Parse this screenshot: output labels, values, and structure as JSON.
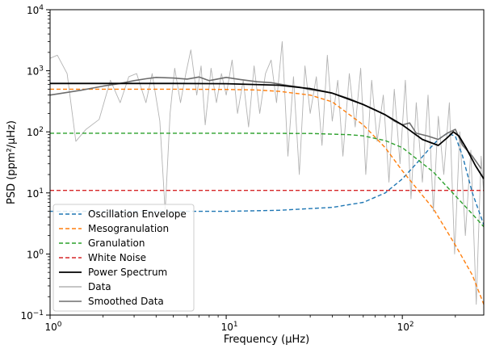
{
  "chart_data": {
    "type": "line",
    "xlabel": "Frequency (μHz)",
    "ylabel": "PSD (ppm²/μHz)",
    "xscale": "log",
    "yscale": "log",
    "xlim": [
      1,
      290
    ],
    "ylim": [
      0.1,
      10000
    ],
    "x_ticks": [
      {
        "value": 1,
        "base": "10",
        "exp": "0"
      },
      {
        "value": 10,
        "base": "10",
        "exp": "1"
      },
      {
        "value": 100,
        "base": "10",
        "exp": "2"
      }
    ],
    "y_ticks": [
      {
        "value": 0.1,
        "base": "10",
        "exp": "−1"
      },
      {
        "value": 1,
        "base": "10",
        "exp": "0"
      },
      {
        "value": 10,
        "base": "10",
        "exp": "1"
      },
      {
        "value": 100,
        "base": "10",
        "exp": "2"
      },
      {
        "value": 1000,
        "base": "10",
        "exp": "3"
      },
      {
        "value": 10000,
        "base": "10",
        "exp": "4"
      }
    ],
    "grid": false,
    "legend_position": "bottom-left",
    "legend": [
      {
        "label": "Oscillation Envelope",
        "color": "#1f77b4",
        "style": "dashed"
      },
      {
        "label": "Mesogranulation",
        "color": "#ff7f0e",
        "style": "dashed"
      },
      {
        "label": "Granulation",
        "color": "#2ca02c",
        "style": "dashed"
      },
      {
        "label": "White Noise",
        "color": "#d62728",
        "style": "dashed"
      },
      {
        "label": "Power Spectrum",
        "color": "#000000",
        "style": "solid"
      },
      {
        "label": "Data",
        "color": "#b3b3b3",
        "style": "solid"
      },
      {
        "label": "Smoothed Data",
        "color": "#6e6e6e",
        "style": "solid"
      }
    ],
    "series": [
      {
        "name": "Oscillation Envelope",
        "x": [
          1,
          5,
          10,
          20,
          40,
          60,
          80,
          100,
          120,
          140,
          160,
          180,
          200,
          220,
          250,
          290
        ],
        "y": [
          5,
          5,
          5,
          5.2,
          5.8,
          7,
          10,
          17,
          30,
          50,
          75,
          95,
          85,
          40,
          10,
          3
        ]
      },
      {
        "name": "Mesogranulation",
        "x": [
          1,
          5,
          10,
          15,
          20,
          30,
          40,
          60,
          80,
          100,
          150,
          200,
          250,
          290
        ],
        "y": [
          500,
          500,
          495,
          485,
          460,
          400,
          310,
          130,
          55,
          23,
          5.5,
          1.4,
          0.45,
          0.15
        ]
      },
      {
        "name": "Granulation",
        "x": [
          1,
          10,
          30,
          50,
          60,
          80,
          100,
          150,
          200,
          250,
          290
        ],
        "y": [
          95,
          95,
          94,
          90,
          86,
          72,
          55,
          22,
          9,
          4.5,
          2.8
        ]
      },
      {
        "name": "White Noise",
        "x": [
          1,
          290
        ],
        "y": [
          11,
          11
        ]
      },
      {
        "name": "Power Spectrum",
        "x": [
          1,
          5,
          10,
          20,
          30,
          40,
          60,
          80,
          100,
          130,
          160,
          180,
          195,
          210,
          230,
          260,
          290
        ],
        "y": [
          620,
          620,
          615,
          580,
          510,
          430,
          280,
          190,
          130,
          75,
          60,
          80,
          100,
          85,
          55,
          28,
          17
        ]
      },
      {
        "name": "Data",
        "x": [
          1,
          1.1,
          1.25,
          1.4,
          1.6,
          1.9,
          2.2,
          2.5,
          2.8,
          3.1,
          3.5,
          3.8,
          4.2,
          4.5,
          4.8,
          5.1,
          5.5,
          5.9,
          6.3,
          6.8,
          7.2,
          7.6,
          8.2,
          8.8,
          9.4,
          10,
          10.8,
          11.6,
          12.5,
          13.4,
          14.4,
          15.5,
          16.7,
          18,
          19.3,
          20.8,
          22.4,
          24.1,
          26,
          28,
          30,
          32.5,
          35,
          37.5,
          40,
          43,
          46,
          50,
          54,
          58,
          62,
          67,
          72,
          78,
          84,
          90,
          97,
          104,
          112,
          120,
          130,
          140,
          150,
          160,
          172,
          185,
          198,
          212,
          228,
          245,
          263,
          280,
          290
        ],
        "y": [
          1600,
          1800,
          900,
          70,
          110,
          160,
          700,
          300,
          800,
          900,
          300,
          900,
          150,
          5,
          200,
          1100,
          300,
          900,
          2200,
          400,
          1200,
          130,
          1100,
          300,
          900,
          400,
          1500,
          200,
          700,
          120,
          1200,
          200,
          900,
          1500,
          300,
          3000,
          40,
          800,
          20,
          1200,
          200,
          800,
          60,
          1800,
          150,
          700,
          40,
          900,
          120,
          1100,
          20,
          700,
          70,
          400,
          15,
          500,
          30,
          700,
          8,
          300,
          15,
          400,
          5,
          180,
          20,
          300,
          1,
          100,
          2,
          50,
          0.15,
          40,
          10
        ]
      },
      {
        "name": "Smoothed Data",
        "x": [
          1,
          1.5,
          2,
          2.5,
          3,
          3.5,
          4,
          5,
          6,
          7,
          8,
          10,
          12,
          15,
          18,
          22,
          26,
          30,
          35,
          40,
          50,
          60,
          70,
          80,
          90,
          100,
          110,
          120,
          140,
          160,
          180,
          200,
          220,
          250,
          280
        ],
        "y": [
          400,
          480,
          560,
          620,
          690,
          740,
          780,
          760,
          730,
          790,
          690,
          780,
          720,
          660,
          640,
          580,
          540,
          490,
          460,
          430,
          350,
          280,
          230,
          190,
          150,
          130,
          140,
          95,
          85,
          75,
          95,
          110,
          60,
          40,
          25
        ]
      }
    ]
  }
}
